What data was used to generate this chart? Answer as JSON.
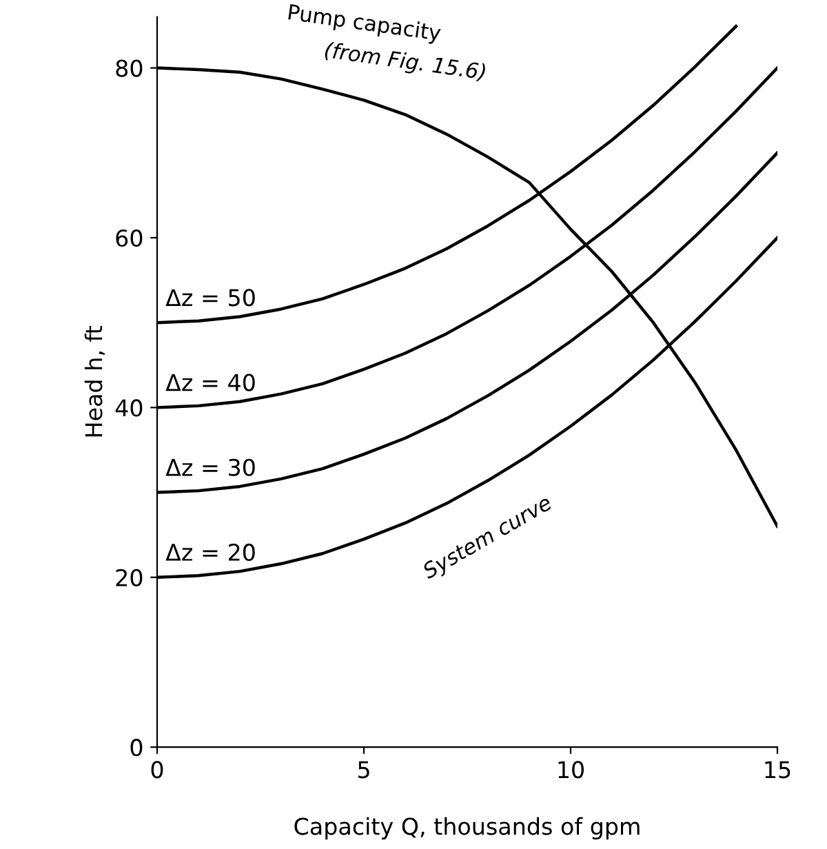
{
  "chart_data": {
    "type": "line",
    "xlabel": "Capacity Q, thousands of gpm",
    "ylabel": "Head h, ft",
    "xlim": [
      0,
      15
    ],
    "ylim": [
      0,
      86
    ],
    "xticks": [
      0,
      5,
      10,
      15
    ],
    "yticks": [
      0,
      20,
      40,
      60,
      80
    ],
    "grid": false,
    "legend": false,
    "marker": "none",
    "line_style": "solid",
    "x": [
      0,
      1,
      2,
      3,
      4,
      5,
      6,
      7,
      8,
      9,
      10,
      11,
      12,
      13,
      14,
      15
    ],
    "series": [
      {
        "name": "Pump capacity",
        "color": "#000000",
        "values": [
          80,
          79.8,
          79.5,
          78.7,
          77.5,
          76.2,
          74.5,
          72.2,
          69.5,
          66.5,
          61,
          56,
          50,
          43,
          35,
          26
        ]
      },
      {
        "name": "Δz = 50",
        "color": "#000000",
        "values": [
          50,
          50.2,
          50.7,
          51.6,
          52.8,
          54.5,
          56.4,
          58.7,
          61.4,
          64.4,
          67.8,
          71.5,
          75.6,
          80.1,
          84.9,
          null
        ]
      },
      {
        "name": "Δz = 40",
        "color": "#000000",
        "values": [
          40,
          40.2,
          40.7,
          41.6,
          42.8,
          44.5,
          46.4,
          48.7,
          51.4,
          54.4,
          57.8,
          61.5,
          65.6,
          70.1,
          74.9,
          80
        ]
      },
      {
        "name": "Δz = 30",
        "color": "#000000",
        "values": [
          30,
          30.2,
          30.7,
          31.6,
          32.8,
          34.5,
          36.4,
          38.7,
          41.4,
          44.4,
          47.8,
          51.5,
          55.6,
          60.1,
          64.9,
          70
        ]
      },
      {
        "name": "Δz = 20",
        "color": "#000000",
        "values": [
          20,
          20.2,
          20.7,
          21.6,
          22.8,
          24.5,
          26.4,
          28.7,
          31.4,
          34.4,
          37.8,
          41.5,
          45.6,
          50.1,
          54.9,
          60
        ]
      }
    ],
    "annotations": [
      {
        "text": "(from Fig. 15.6)",
        "x": 4,
        "y": 77.5
      },
      {
        "text": "System curve",
        "x": 8,
        "y": 31.4
      }
    ]
  }
}
